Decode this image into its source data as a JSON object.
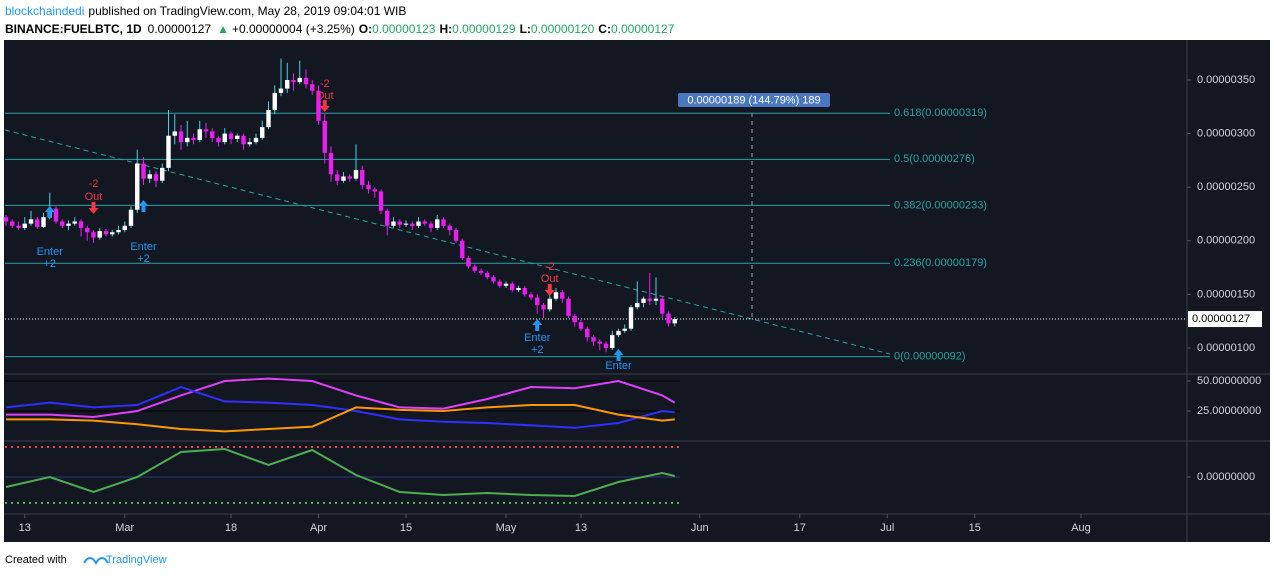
{
  "header": {
    "author": "blockchaindedi",
    "published": "published on TradingView.com, May 28, 2019 09:04:01 WIB",
    "symbol": "BINANCE:FUELBTC, 1D",
    "price": "0.00000127",
    "change": "+0.00000004 (+3.25%)",
    "o_label": "O:",
    "o": "0.00000123",
    "h_label": "H:",
    "h": "0.00000129",
    "l_label": "L:",
    "l": "0.00000120",
    "c_label": "C:",
    "c": "0.00000127"
  },
  "footer": {
    "created": "Created with",
    "brand": "TradingView"
  },
  "chart_data": [
    {
      "type": "candlestick",
      "up_color": "#ffffff",
      "down_color": "#e91ef0",
      "up_wick": "#4dd0e1",
      "down_wick": "#e91ef0",
      "xlim": [
        "Feb 10",
        "Aug 17"
      ],
      "xticks": [
        {
          "value": "Feb 13",
          "label": "13"
        },
        {
          "value": "Mar 1",
          "label": "Mar"
        },
        {
          "value": "Mar 18",
          "label": "18"
        },
        {
          "value": "Apr 1",
          "label": "Apr"
        },
        {
          "value": "Apr 15",
          "label": "15"
        },
        {
          "value": "May 1",
          "label": "May"
        },
        {
          "value": "May 13",
          "label": "13"
        },
        {
          "value": "Jun 1",
          "label": "Jun"
        },
        {
          "value": "Jun 17",
          "label": "17"
        },
        {
          "value": "Jul 1",
          "label": "Jul"
        },
        {
          "value": "Jul 15",
          "label": "15"
        },
        {
          "value": "Aug 1",
          "label": "Aug"
        }
      ],
      "ylim": [
        7.76e-07,
        3.873e-06
      ],
      "yticks": [
        {
          "value": 1e-06,
          "label": "0.00000100"
        },
        {
          "value": 1.5e-06,
          "label": "0.00000150"
        },
        {
          "value": 2e-06,
          "label": "0.00000200"
        },
        {
          "value": 2.5e-06,
          "label": "0.00000250"
        },
        {
          "value": 3e-06,
          "label": "0.00000300"
        },
        {
          "value": 3.5e-06,
          "label": "0.00000350"
        }
      ],
      "last": {
        "value": 1.27e-06,
        "label": "0.00000127"
      },
      "fib_color": "#2aa3a3",
      "fib_levels": [
        {
          "value": 3.19e-06,
          "label": "0.618(0.00000319)"
        },
        {
          "value": 2.76e-06,
          "label": "0.5(0.00000276)"
        },
        {
          "value": 2.33e-06,
          "label": "0.382(0.00000233)"
        },
        {
          "value": 1.79e-06,
          "label": "0.236(0.00000179)"
        },
        {
          "value": 9.2e-07,
          "label": "0(0.00000092)"
        }
      ],
      "measure": "0.00000189 (144.79%) 189",
      "annotations": [
        {
          "x": "Feb 17",
          "lines": [
            "Enter",
            "+2"
          ]
        },
        {
          "x": "Feb 24",
          "lines": [
            "-2",
            "Out"
          ]
        },
        {
          "x": "Mar 4",
          "lines": [
            "Enter",
            "+2"
          ]
        },
        {
          "x": "Apr 2",
          "lines": [
            "-2",
            "Out"
          ]
        },
        {
          "x": "May 6",
          "lines": [
            "Enter",
            "+2"
          ]
        },
        {
          "x": "May 8",
          "lines": [
            "-2",
            "Out"
          ]
        },
        {
          "x": "May 19",
          "lines": [
            "Enter"
          ]
        }
      ],
      "x": [
        "Feb 10",
        "Feb 11",
        "Feb 12",
        "Feb 13",
        "Feb 14",
        "Feb 15",
        "Feb 16",
        "Feb 17",
        "Feb 18",
        "Feb 19",
        "Feb 20",
        "Feb 21",
        "Feb 22",
        "Feb 23",
        "Feb 24",
        "Feb 25",
        "Feb 26",
        "Feb 27",
        "Feb 28",
        "Mar 1",
        "Mar 2",
        "Mar 3",
        "Mar 4",
        "Mar 5",
        "Mar 6",
        "Mar 7",
        "Mar 8",
        "Mar 9",
        "Mar 10",
        "Mar 11",
        "Mar 12",
        "Mar 13",
        "Mar 14",
        "Mar 15",
        "Mar 16",
        "Mar 17",
        "Mar 18",
        "Mar 19",
        "Mar 20",
        "Mar 21",
        "Mar 22",
        "Mar 23",
        "Mar 24",
        "Mar 25",
        "Mar 26",
        "Mar 27",
        "Mar 28",
        "Mar 29",
        "Mar 30",
        "Mar 31",
        "Apr 1",
        "Apr 2",
        "Apr 3",
        "Apr 4",
        "Apr 5",
        "Apr 6",
        "Apr 7",
        "Apr 8",
        "Apr 9",
        "Apr 10",
        "Apr 11",
        "Apr 12",
        "Apr 13",
        "Apr 14",
        "Apr 15",
        "Apr 16",
        "Apr 17",
        "Apr 18",
        "Apr 19",
        "Apr 20",
        "Apr 21",
        "Apr 22",
        "Apr 23",
        "Apr 24",
        "Apr 25",
        "Apr 26",
        "Apr 27",
        "Apr 28",
        "Apr 29",
        "Apr 30",
        "May 1",
        "May 2",
        "May 3",
        "May 4",
        "May 5",
        "May 6",
        "May 7",
        "May 8",
        "May 9",
        "May 10",
        "May 11",
        "May 12",
        "May 13",
        "May 14",
        "May 15",
        "May 16",
        "May 17",
        "May 18",
        "May 19",
        "May 20",
        "May 21",
        "May 22",
        "May 23",
        "May 24",
        "May 25",
        "May 26",
        "May 27",
        "May 28"
      ],
      "open": [
        2.22e-06,
        2.18e-06,
        2.14e-06,
        2.12e-06,
        2.16e-06,
        2.2e-06,
        2.13e-06,
        2.22e-06,
        2.3e-06,
        2.18e-06,
        2.14e-06,
        2.16e-06,
        2.18e-06,
        2.12e-06,
        2.08e-06,
        2.03e-06,
        2.09e-06,
        2.06e-06,
        2.08e-06,
        2.1e-06,
        2.14e-06,
        2.29e-06,
        2.72e-06,
        2.58e-06,
        2.62e-06,
        2.56e-06,
        2.68e-06,
        2.98e-06,
        3.02e-06,
        2.92e-06,
        2.96e-06,
        2.94e-06,
        3.04e-06,
        3.02e-06,
        2.96e-06,
        2.92e-06,
        3e-06,
        2.95e-06,
        2.98e-06,
        2.9e-06,
        2.92e-06,
        2.96e-06,
        3.06e-06,
        3.22e-06,
        3.38e-06,
        3.42e-06,
        3.5e-06,
        3.48e-06,
        3.52e-06,
        3.46e-06,
        3.4e-06,
        3.12e-06,
        2.82e-06,
        2.62e-06,
        2.56e-06,
        2.6e-06,
        2.58e-06,
        2.66e-06,
        2.52e-06,
        2.48e-06,
        2.46e-06,
        2.28e-06,
        2.14e-06,
        2.18e-06,
        2.15e-06,
        2.16e-06,
        2.14e-06,
        2.18e-06,
        2.16e-06,
        2.12e-06,
        2.2e-06,
        2.14e-06,
        2.1e-06,
        2e-06,
        1.84e-06,
        1.76e-06,
        1.72e-06,
        1.7e-06,
        1.66e-06,
        1.62e-06,
        1.58e-06,
        1.6e-06,
        1.54e-06,
        1.56e-06,
        1.5e-06,
        1.47e-06,
        1.4e-06,
        1.36e-06,
        1.46e-06,
        1.52e-06,
        1.46e-06,
        1.3e-06,
        1.24e-06,
        1.18e-06,
        1.1e-06,
        1.06e-06,
        1.04e-06,
        1e-06,
        1.12e-06,
        1.16e-06,
        1.18e-06,
        1.38e-06,
        1.42e-06,
        1.46e-06,
        1.44e-06,
        1.46e-06,
        1.32e-06,
        1.23e-06
      ],
      "high": [
        2.24e-06,
        2.2e-06,
        2.18e-06,
        2.22e-06,
        2.28e-06,
        2.22e-06,
        2.26e-06,
        2.45e-06,
        2.32e-06,
        2.2e-06,
        2.19e-06,
        2.22e-06,
        2.2e-06,
        2.14e-06,
        2.1e-06,
        2.12e-06,
        2.11e-06,
        2.1e-06,
        2.14e-06,
        2.18e-06,
        2.32e-06,
        2.85e-06,
        2.78e-06,
        2.66e-06,
        2.65e-06,
        2.72e-06,
        3.22e-06,
        3.18e-06,
        3.08e-06,
        3.12e-06,
        3e-06,
        3.12e-06,
        3.1e-06,
        3.05e-06,
        2.98e-06,
        3.05e-06,
        3.02e-06,
        3e-06,
        3e-06,
        2.96e-06,
        3e-06,
        3.12e-06,
        3.3e-06,
        3.45e-06,
        3.7e-06,
        3.66e-06,
        3.56e-06,
        3.68e-06,
        3.6e-06,
        3.5e-06,
        3.45e-06,
        3.18e-06,
        2.88e-06,
        2.66e-06,
        2.64e-06,
        2.62e-06,
        2.9e-06,
        2.7e-06,
        2.56e-06,
        2.5e-06,
        2.48e-06,
        2.3e-06,
        2.22e-06,
        2.2e-06,
        2.19e-06,
        2.18e-06,
        2.22e-06,
        2.2e-06,
        2.18e-06,
        2.24e-06,
        2.22e-06,
        2.16e-06,
        2.12e-06,
        2.02e-06,
        1.86e-06,
        1.78e-06,
        1.74e-06,
        1.72e-06,
        1.68e-06,
        1.64e-06,
        1.62e-06,
        1.62e-06,
        1.58e-06,
        1.58e-06,
        1.52e-06,
        1.5e-06,
        1.42e-06,
        1.5e-06,
        1.56e-06,
        1.54e-06,
        1.48e-06,
        1.32e-06,
        1.26e-06,
        1.2e-06,
        1.12e-06,
        1.08e-06,
        1.06e-06,
        1.16e-06,
        1.18e-06,
        1.22e-06,
        1.4e-06,
        1.62e-06,
        1.48e-06,
        1.7e-06,
        1.66e-06,
        1.48e-06,
        1.34e-06,
        1.29e-06
      ],
      "low": [
        2.14e-06,
        2.12e-06,
        2.1e-06,
        2.1e-06,
        2.14e-06,
        2.11e-06,
        2.12e-06,
        2.2e-06,
        2.16e-06,
        2.12e-06,
        2.1e-06,
        2.14e-06,
        2.04e-06,
        2e-06,
        1.98e-06,
        2.01e-06,
        2.04e-06,
        2.04e-06,
        2.06e-06,
        2.08e-06,
        2.12e-06,
        2.26e-06,
        2.52e-06,
        2.54e-06,
        2.5e-06,
        2.54e-06,
        2.65e-06,
        2.9e-06,
        2.85e-06,
        2.88e-06,
        2.9e-06,
        2.92e-06,
        2.96e-06,
        2.92e-06,
        2.88e-06,
        2.9e-06,
        2.9e-06,
        2.92e-06,
        2.85e-06,
        2.88e-06,
        2.9e-06,
        2.94e-06,
        3.04e-06,
        3.18e-06,
        3.35e-06,
        3.38e-06,
        3.4e-06,
        3.46e-06,
        3.42e-06,
        3.36e-06,
        3.08e-06,
        2.72e-06,
        2.55e-06,
        2.52e-06,
        2.54e-06,
        2.55e-06,
        2.56e-06,
        2.48e-06,
        2.44e-06,
        2.4e-06,
        2.25e-06,
        2.05e-06,
        2.12e-06,
        2.12e-06,
        2.13e-06,
        2.1e-06,
        2.12e-06,
        2.14e-06,
        2.08e-06,
        2.1e-06,
        2.12e-06,
        2.05e-06,
        1.98e-06,
        1.82e-06,
        1.74e-06,
        1.7e-06,
        1.68e-06,
        1.64e-06,
        1.6e-06,
        1.56e-06,
        1.56e-06,
        1.52e-06,
        1.52e-06,
        1.48e-06,
        1.45e-06,
        1.32e-06,
        1.28e-06,
        1.34e-06,
        1.44e-06,
        1.42e-06,
        1.28e-06,
        1.2e-06,
        1.16e-06,
        1.06e-06,
        1.02e-06,
        9.8e-07,
        9.6e-07,
        9.8e-07,
        1.1e-06,
        1.14e-06,
        1.16e-06,
        1.36e-06,
        1.38e-06,
        1.4e-06,
        1.4e-06,
        1.28e-06,
        1.2e-06,
        1.2e-06
      ],
      "close": [
        2.18e-06,
        2.14e-06,
        2.12e-06,
        2.16e-06,
        2.2e-06,
        2.13e-06,
        2.22e-06,
        2.3e-06,
        2.18e-06,
        2.14e-06,
        2.16e-06,
        2.18e-06,
        2.12e-06,
        2.08e-06,
        2.03e-06,
        2.09e-06,
        2.06e-06,
        2.08e-06,
        2.1e-06,
        2.14e-06,
        2.29e-06,
        2.72e-06,
        2.58e-06,
        2.62e-06,
        2.56e-06,
        2.68e-06,
        2.98e-06,
        3.02e-06,
        2.92e-06,
        2.96e-06,
        2.94e-06,
        3.04e-06,
        3.02e-06,
        2.96e-06,
        2.92e-06,
        3e-06,
        2.95e-06,
        2.98e-06,
        2.9e-06,
        2.92e-06,
        2.96e-06,
        3.06e-06,
        3.22e-06,
        3.38e-06,
        3.42e-06,
        3.5e-06,
        3.48e-06,
        3.52e-06,
        3.46e-06,
        3.4e-06,
        3.12e-06,
        2.82e-06,
        2.62e-06,
        2.56e-06,
        2.6e-06,
        2.58e-06,
        2.66e-06,
        2.52e-06,
        2.48e-06,
        2.46e-06,
        2.28e-06,
        2.14e-06,
        2.18e-06,
        2.15e-06,
        2.16e-06,
        2.14e-06,
        2.18e-06,
        2.16e-06,
        2.12e-06,
        2.2e-06,
        2.14e-06,
        2.1e-06,
        2e-06,
        1.84e-06,
        1.76e-06,
        1.72e-06,
        1.7e-06,
        1.66e-06,
        1.62e-06,
        1.58e-06,
        1.6e-06,
        1.54e-06,
        1.56e-06,
        1.5e-06,
        1.47e-06,
        1.4e-06,
        1.36e-06,
        1.46e-06,
        1.52e-06,
        1.46e-06,
        1.3e-06,
        1.24e-06,
        1.18e-06,
        1.1e-06,
        1.06e-06,
        1.04e-06,
        1e-06,
        1.12e-06,
        1.16e-06,
        1.18e-06,
        1.38e-06,
        1.42e-06,
        1.46e-06,
        1.44e-06,
        1.46e-06,
        1.32e-06,
        1.23e-06,
        1.27e-06
      ]
    },
    {
      "type": "line",
      "ylim": [
        0,
        54.2
      ],
      "yticks": [
        {
          "value": 50,
          "label": "50.00000000"
        },
        {
          "value": 25,
          "label": "25.00000000"
        }
      ],
      "x": [
        "Feb 10",
        "Feb 17",
        "Feb 24",
        "Mar 3",
        "Mar 10",
        "Mar 17",
        "Mar 24",
        "Mar 31",
        "Apr 7",
        "Apr 14",
        "Apr 21",
        "Apr 28",
        "May 5",
        "May 12",
        "May 19",
        "May 26",
        "May 28"
      ],
      "series": [
        {
          "color": "#e040fb",
          "values": [
            22,
            22,
            20,
            25,
            38,
            50,
            52,
            50,
            38,
            28,
            27,
            35,
            45,
            44,
            50,
            38,
            32
          ]
        },
        {
          "color": "#2f2fff",
          "values": [
            28,
            32,
            28,
            30,
            45,
            33,
            32,
            30,
            25,
            18,
            16,
            15,
            13,
            11,
            15,
            25,
            24
          ]
        },
        {
          "color": "#ff9800",
          "values": [
            18,
            18,
            17,
            14,
            10,
            8,
            10,
            12,
            28,
            26,
            25,
            28,
            30,
            30,
            22,
            17,
            18
          ]
        }
      ]
    },
    {
      "type": "line",
      "ylim": [
        -3.5e-08,
        3.5e-08
      ],
      "yticks": [
        {
          "value": 0,
          "label": "0.00000000"
        }
      ],
      "levels": [
        {
          "value": 3e-08,
          "color": "#f44336"
        },
        {
          "value": -2.6e-08,
          "color": "#4caf50"
        }
      ],
      "x": [
        "Feb 10",
        "Feb 17",
        "Feb 24",
        "Mar 3",
        "Mar 10",
        "Mar 17",
        "Mar 24",
        "Mar 31",
        "Apr 7",
        "Apr 14",
        "Apr 21",
        "Apr 28",
        "May 5",
        "May 12",
        "May 19",
        "May 26",
        "May 28"
      ],
      "series": [
        {
          "color": "#4caf50",
          "values": [
            -1e-08,
            0,
            -1.5e-08,
            0,
            2.5e-08,
            2.8e-08,
            1.2e-08,
            2.7e-08,
            2e-09,
            -1.5e-08,
            -1.8e-08,
            -1.6e-08,
            -1.8e-08,
            -1.9e-08,
            -5e-09,
            4e-09,
            1e-09
          ]
        }
      ]
    }
  ]
}
